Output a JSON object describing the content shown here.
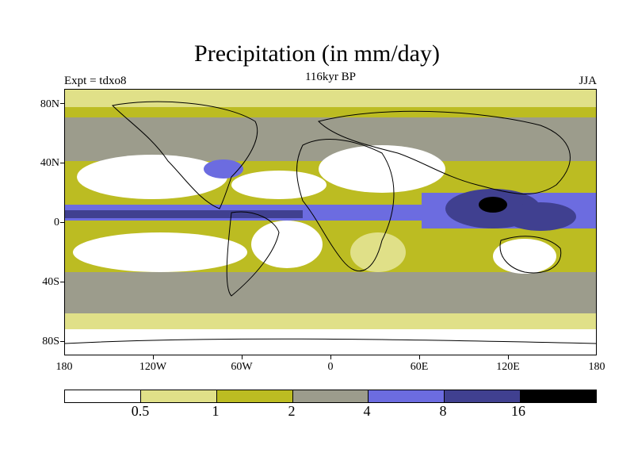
{
  "title": "Precipitation (in mm/day)",
  "subtitle": "116kyr BP",
  "experiment_label": "Expt = tdxo8",
  "season_label": "JJA",
  "map": {
    "projection": "cylindrical-equidistant",
    "lat_range": [
      -90,
      90
    ],
    "lon_range": [
      -180,
      180
    ],
    "lat_ticks": [
      "80N",
      "40N",
      "0",
      "40S",
      "80S"
    ],
    "lon_ticks": [
      "180",
      "120W",
      "60W",
      "0",
      "60E",
      "120E",
      "180"
    ]
  },
  "colorbar": {
    "colors": [
      "#ffffff",
      "#e0e088",
      "#bcbc22",
      "#9c9c8c",
      "#6c6ce0",
      "#404090",
      "#000000"
    ],
    "labels": [
      "0.5",
      "1",
      "2",
      "4",
      "8",
      "16"
    ]
  }
}
